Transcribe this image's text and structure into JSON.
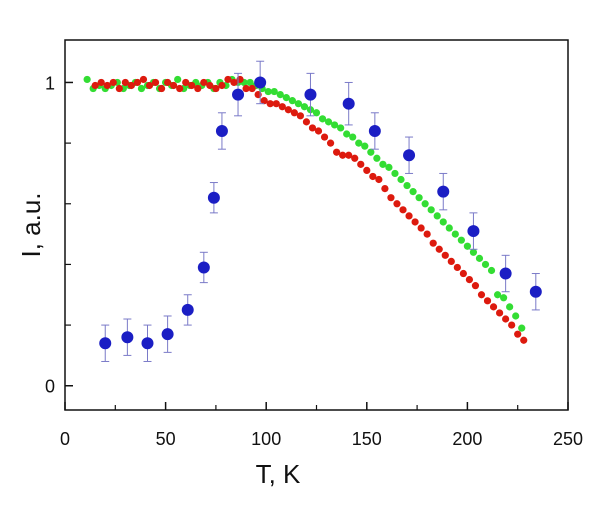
{
  "chart_data": {
    "type": "scatter",
    "title": "",
    "xlabel": "T, K",
    "ylabel": "I, a.u.",
    "xlim": [
      0,
      250
    ],
    "ylim": [
      -0.08,
      1.14
    ],
    "x_ticks": [
      0,
      50,
      100,
      150,
      200,
      250
    ],
    "y_ticks_labeled": [
      0,
      1
    ],
    "y_ticks_minor": [
      0.2,
      0.4,
      0.6,
      0.8
    ],
    "grid": false,
    "legend": "none",
    "colors": {
      "green": "#33dd33",
      "red": "#dd1a0e",
      "blue": "#1b1ec4",
      "errorbar": "#7a7ac8"
    },
    "series": [
      {
        "color": "green",
        "marker": "small-dot",
        "x": [
          11,
          14,
          17,
          20,
          23,
          26,
          29,
          32,
          35,
          38,
          41,
          44,
          47,
          50,
          53,
          56,
          59,
          62,
          65,
          68,
          71,
          74,
          77,
          80,
          83,
          86,
          89,
          92,
          95,
          98,
          101,
          104,
          107,
          110,
          113,
          116,
          119,
          122,
          125,
          128,
          131,
          134,
          137,
          140,
          143,
          146,
          149,
          152,
          155,
          158,
          161,
          164,
          167,
          170,
          173,
          176,
          179,
          182,
          185,
          188,
          191,
          194,
          197,
          200,
          203,
          206,
          209,
          212,
          215,
          218,
          221,
          224,
          227
        ],
        "y": [
          1.01,
          0.98,
          0.99,
          0.98,
          0.99,
          1.0,
          0.98,
          0.99,
          1.0,
          0.98,
          0.99,
          1.0,
          0.98,
          1.0,
          0.99,
          1.01,
          0.98,
          0.99,
          1.0,
          0.99,
          1.0,
          0.98,
          1.0,
          0.99,
          1.01,
          1.0,
          1.0,
          1.0,
          0.99,
          0.98,
          0.97,
          0.97,
          0.96,
          0.95,
          0.94,
          0.93,
          0.92,
          0.91,
          0.9,
          0.88,
          0.87,
          0.86,
          0.85,
          0.83,
          0.82,
          0.8,
          0.79,
          0.77,
          0.75,
          0.73,
          0.72,
          0.7,
          0.68,
          0.66,
          0.64,
          0.62,
          0.6,
          0.58,
          0.56,
          0.54,
          0.52,
          0.5,
          0.48,
          0.46,
          0.44,
          0.42,
          0.4,
          0.38,
          0.3,
          0.29,
          0.26,
          0.23,
          0.19
        ]
      },
      {
        "color": "red",
        "marker": "small-dot",
        "x": [
          15,
          18,
          21,
          24,
          27,
          30,
          33,
          36,
          39,
          42,
          45,
          48,
          51,
          54,
          57,
          60,
          63,
          66,
          69,
          72,
          75,
          78,
          81,
          84,
          87,
          90,
          93,
          96,
          99,
          102,
          105,
          108,
          111,
          114,
          117,
          120,
          123,
          126,
          129,
          132,
          135,
          138,
          141,
          144,
          147,
          150,
          153,
          156,
          159,
          162,
          165,
          168,
          171,
          174,
          177,
          180,
          183,
          186,
          189,
          192,
          195,
          198,
          201,
          204,
          207,
          210,
          213,
          216,
          219,
          222,
          225,
          228
        ],
        "y": [
          0.99,
          1.0,
          0.99,
          1.0,
          0.98,
          1.0,
          0.99,
          1.0,
          1.01,
          0.99,
          1.0,
          0.98,
          1.0,
          0.99,
          0.98,
          1.0,
          0.99,
          0.98,
          1.0,
          0.99,
          0.98,
          0.99,
          1.01,
          1.0,
          1.01,
          0.98,
          0.98,
          0.96,
          0.94,
          0.93,
          0.93,
          0.92,
          0.91,
          0.9,
          0.89,
          0.87,
          0.85,
          0.84,
          0.82,
          0.8,
          0.77,
          0.76,
          0.76,
          0.75,
          0.73,
          0.71,
          0.69,
          0.68,
          0.65,
          0.62,
          0.6,
          0.58,
          0.56,
          0.54,
          0.52,
          0.5,
          0.47,
          0.45,
          0.43,
          0.41,
          0.39,
          0.37,
          0.35,
          0.33,
          0.3,
          0.28,
          0.26,
          0.24,
          0.22,
          0.2,
          0.17,
          0.15
        ]
      },
      {
        "color": "blue",
        "marker": "large-dot-with-errorbar",
        "x": [
          20,
          31,
          41,
          51,
          61,
          69,
          74,
          78,
          86,
          97,
          122,
          141,
          154,
          171,
          188,
          203,
          219,
          234
        ],
        "y": [
          0.14,
          0.16,
          0.14,
          0.17,
          0.25,
          0.39,
          0.62,
          0.84,
          0.96,
          1.0,
          0.96,
          0.93,
          0.84,
          0.76,
          0.64,
          0.51,
          0.37,
          0.31
        ],
        "error": [
          0.06,
          0.06,
          0.06,
          0.06,
          0.05,
          0.05,
          0.05,
          0.06,
          0.07,
          0.07,
          0.07,
          0.07,
          0.06,
          0.06,
          0.06,
          0.06,
          0.06,
          0.06
        ]
      }
    ]
  }
}
